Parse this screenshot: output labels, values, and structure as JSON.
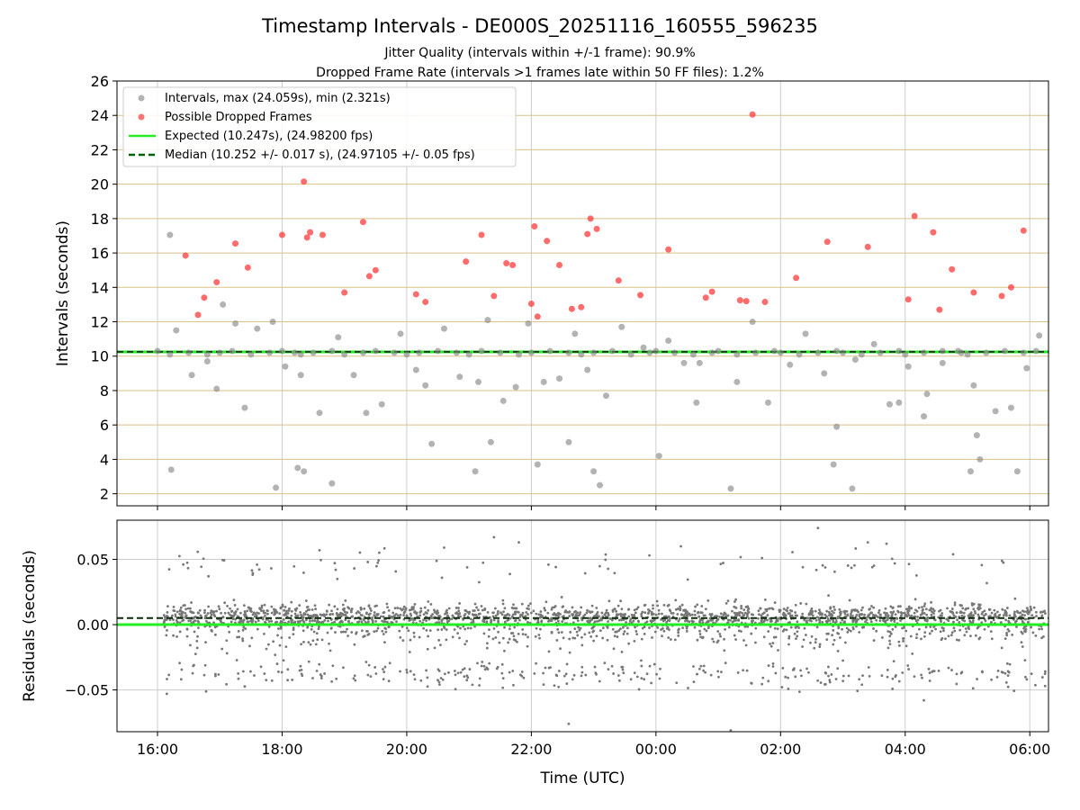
{
  "title": "Timestamp Intervals - DE000S_20251116_160555_596235",
  "subtitle_lines": [
    "Jitter Quality (intervals within +/-1 frame): 90.9%",
    "Dropped Frame Rate (intervals >1 frames late within 50 FF files): 1.2%"
  ],
  "colors": {
    "intervals": "#808080",
    "dropped": "#ff3b3b",
    "expected": "#22ee22",
    "median": "#006400",
    "hgrid_top": "#d9c287",
    "grid": "#cccccc",
    "residuals": "#777777"
  },
  "chart_data": [
    {
      "type": "scatter",
      "id": "intervals",
      "ylabel": "Intervals (seconds)",
      "xlabel": "",
      "xlim": [
        -0.65,
        14.3
      ],
      "ylim": [
        1.3,
        26.0
      ],
      "yticks": [
        2,
        4,
        6,
        8,
        10,
        12,
        14,
        16,
        18,
        20,
        22,
        24,
        26
      ],
      "ytick_labels": [
        "2",
        "4",
        "6",
        "8",
        "10",
        "12",
        "14",
        "16",
        "18",
        "20",
        "22",
        "24",
        "26"
      ],
      "expected_value": 10.247,
      "median_value": 10.252,
      "legend": {
        "position": "upper-left",
        "entries": [
          "Intervals, max (24.059s), min (2.321s)",
          "Possible Dropped Frames",
          "Expected (10.247s), (24.98200 fps)",
          "Median (10.252 +/- 0.017 s), (24.97105 +/- 0.05 fps)"
        ]
      },
      "series": [
        {
          "name": "Intervals",
          "x": [
            0.0,
            0.2,
            0.5,
            0.8,
            1.0,
            1.2,
            1.5,
            1.8,
            2.0,
            2.2,
            2.3,
            2.5,
            2.8,
            3.0,
            3.3,
            3.5,
            3.8,
            4.0,
            4.2,
            4.5,
            4.8,
            5.0,
            5.2,
            5.5,
            5.8,
            6.0,
            6.3,
            6.6,
            6.8,
            7.0,
            7.3,
            7.6,
            7.9,
            8.0,
            8.3,
            8.6,
            8.9,
            9.0,
            9.3,
            9.6,
            9.9,
            10.0,
            10.3,
            10.6,
            10.9,
            11.0,
            11.3,
            11.6,
            11.9,
            12.0,
            12.3,
            12.6,
            12.9,
            13.0,
            13.3,
            13.6,
            13.9,
            14.1,
            0.2,
            0.3,
            0.55,
            0.8,
            0.95,
            1.05,
            1.25,
            1.4,
            1.6,
            1.85,
            2.05,
            2.3,
            2.6,
            2.9,
            3.15,
            3.35,
            3.6,
            3.9,
            4.15,
            4.3,
            4.6,
            4.85,
            5.15,
            5.3,
            5.55,
            5.75,
            5.95,
            6.2,
            6.45,
            6.7,
            6.9,
            7.2,
            7.45,
            7.8,
            8.2,
            8.45,
            8.7,
            9.3,
            9.55,
            9.8,
            10.15,
            10.4,
            10.7,
            10.9,
            11.2,
            11.5,
            11.75,
            12.05,
            12.35,
            12.6,
            12.85,
            13.15,
            13.45,
            13.7,
            13.95,
            14.15,
            0.22,
            1.9,
            2.25,
            2.35,
            2.8,
            4.4,
            5.1,
            5.35,
            6.1,
            6.6,
            7.0,
            7.1,
            8.05,
            8.65,
            9.2,
            10.85,
            11.15,
            11.9,
            12.3,
            13.05,
            13.2,
            13.8,
            13.1
          ],
          "y": [
            10.3,
            10.1,
            10.2,
            10.1,
            10.2,
            10.3,
            10.1,
            10.2,
            10.3,
            10.2,
            10.1,
            10.2,
            10.3,
            10.1,
            10.2,
            10.3,
            10.2,
            10.1,
            10.2,
            10.3,
            10.2,
            10.1,
            10.3,
            10.2,
            10.1,
            10.2,
            10.3,
            10.2,
            10.1,
            10.2,
            10.3,
            10.1,
            10.2,
            10.3,
            10.2,
            10.1,
            10.2,
            10.3,
            10.1,
            10.2,
            10.3,
            10.2,
            10.1,
            10.2,
            10.3,
            10.2,
            10.1,
            10.2,
            10.3,
            10.1,
            10.2,
            10.3,
            10.2,
            10.1,
            10.2,
            10.3,
            10.2,
            10.3,
            17.05,
            11.5,
            8.9,
            9.7,
            8.1,
            13.0,
            11.9,
            7.0,
            11.6,
            12.0,
            9.4,
            8.9,
            6.7,
            11.1,
            8.9,
            6.7,
            7.2,
            11.3,
            9.2,
            8.3,
            11.6,
            8.8,
            8.5,
            12.1,
            7.4,
            8.2,
            11.9,
            8.5,
            8.7,
            11.3,
            9.2,
            7.7,
            11.7,
            10.5,
            10.9,
            9.6,
            9.6,
            8.5,
            12.0,
            7.3,
            9.5,
            11.3,
            9.0,
            5.9,
            9.8,
            10.7,
            7.2,
            9.4,
            7.8,
            9.6,
            10.3,
            5.4,
            6.8,
            7.0,
            9.3,
            11.2,
            3.4,
            2.35,
            3.5,
            3.3,
            2.6,
            4.9,
            3.3,
            5.0,
            3.7,
            5.0,
            3.3,
            2.5,
            4.2,
            7.3,
            2.3,
            3.7,
            2.3,
            7.3,
            6.5,
            3.3,
            4.0,
            3.3,
            8.3
          ]
        },
        {
          "name": "Possible Dropped Frames",
          "x": [
            0.45,
            0.65,
            0.75,
            0.95,
            1.25,
            1.45,
            2.0,
            2.35,
            2.4,
            2.45,
            2.65,
            3.0,
            3.3,
            3.4,
            3.5,
            4.15,
            4.3,
            4.95,
            5.2,
            5.4,
            5.6,
            5.7,
            6.0,
            6.05,
            6.1,
            6.25,
            6.45,
            6.65,
            6.8,
            6.9,
            6.95,
            7.05,
            7.4,
            7.75,
            8.2,
            8.8,
            8.9,
            9.35,
            9.45,
            9.55,
            9.75,
            10.25,
            10.75,
            11.4,
            12.05,
            12.15,
            12.45,
            12.55,
            12.75,
            13.1,
            13.55,
            13.7,
            13.9
          ],
          "y": [
            15.85,
            12.4,
            13.4,
            14.3,
            16.55,
            15.15,
            17.05,
            20.15,
            16.9,
            17.2,
            17.05,
            13.7,
            17.8,
            14.65,
            15.0,
            13.6,
            13.15,
            15.5,
            17.05,
            13.5,
            15.4,
            15.3,
            13.05,
            17.55,
            12.3,
            16.7,
            15.3,
            12.75,
            12.85,
            17.1,
            18.0,
            17.4,
            14.4,
            13.55,
            16.2,
            13.4,
            13.75,
            13.25,
            13.2,
            24.05,
            13.15,
            14.55,
            16.65,
            16.35,
            13.3,
            18.15,
            17.2,
            12.7,
            15.05,
            13.7,
            13.5,
            14.0,
            17.3
          ]
        }
      ]
    },
    {
      "type": "scatter",
      "id": "residuals",
      "ylabel": "Residuals (seconds)",
      "xlabel": "Time (UTC)",
      "xlim": [
        -0.65,
        14.3
      ],
      "ylim": [
        -0.082,
        0.08
      ],
      "yticks": [
        -0.05,
        0.0,
        0.05
      ],
      "ytick_labels": [
        "−0.05",
        "0.00",
        "0.05"
      ],
      "xticks": [
        0,
        2,
        4,
        6,
        8,
        10,
        12,
        14
      ],
      "xtick_labels": [
        "16:00",
        "18:00",
        "20:00",
        "22:00",
        "00:00",
        "02:00",
        "04:00",
        "06:00"
      ],
      "expected_value": 0.0,
      "median_value": 0.005,
      "generator": {
        "n": 2600,
        "x_range": [
          0.1,
          14.25
        ],
        "components": [
          {
            "weight": 0.72,
            "center": 0.006,
            "spread": 0.005
          },
          {
            "weight": 0.14,
            "center": -0.008,
            "spread": 0.006
          },
          {
            "weight": 0.11,
            "center": -0.038,
            "spread": 0.005
          },
          {
            "weight": 0.03,
            "center": 0.045,
            "spread": 0.006
          }
        ]
      },
      "outliers": {
        "x": [
          2.6,
          4.6,
          5.4,
          5.8,
          6.6,
          8.4,
          11.4,
          11.7,
          10.6,
          9.2,
          0.15,
          12.3
        ],
        "y": [
          0.057,
          0.059,
          0.067,
          0.063,
          -0.076,
          0.06,
          0.063,
          0.062,
          0.074,
          -0.081,
          -0.053,
          -0.058
        ]
      }
    }
  ]
}
